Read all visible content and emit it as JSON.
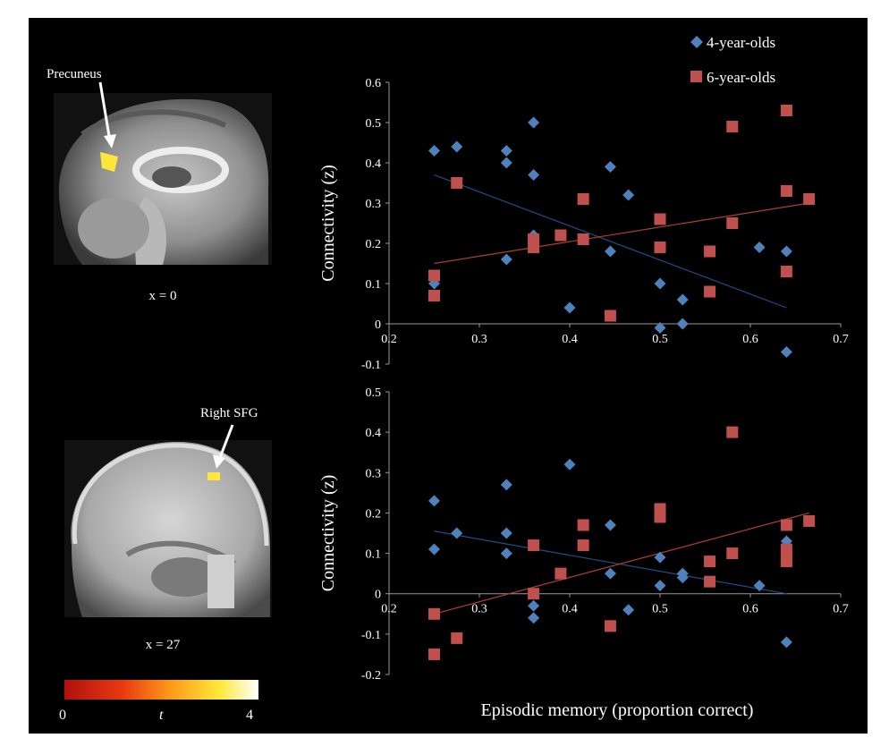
{
  "legend": [
    {
      "name": "4-year-olds",
      "color": "#4f81bd",
      "marker": "diamond"
    },
    {
      "name": "6-year-olds",
      "color": "#c0504d",
      "marker": "square"
    }
  ],
  "brain_panels": [
    {
      "region_label": "Precuneus",
      "slice_label": "x = 0"
    },
    {
      "region_label": "Right SFG",
      "slice_label": "x = 27"
    }
  ],
  "colorbar": {
    "min_label": "0",
    "mid_label": "t",
    "max_label": "4",
    "colors": [
      "#b01010",
      "#e83a10",
      "#ff9a1a",
      "#ffe83a",
      "#ffffff"
    ]
  },
  "chart_data": [
    {
      "type": "scatter",
      "ylabel": "Connectivity  (z)",
      "xlim": [
        0.2,
        0.7
      ],
      "ylim": [
        -0.1,
        0.6
      ],
      "xticks": [
        "0.2",
        "0.3",
        "0.4",
        "0.5",
        "0.6",
        "0.7"
      ],
      "yticks": [
        "-0.1",
        "0",
        "0.1",
        "0.2",
        "0.3",
        "0.4",
        "0.5",
        "0.6"
      ],
      "series": [
        {
          "name": "4-year-olds",
          "color": "#4f81bd",
          "points": [
            [
              0.25,
              0.43
            ],
            [
              0.25,
              0.1
            ],
            [
              0.275,
              0.44
            ],
            [
              0.33,
              0.43
            ],
            [
              0.33,
              0.4
            ],
            [
              0.33,
              0.16
            ],
            [
              0.36,
              0.5
            ],
            [
              0.36,
              0.37
            ],
            [
              0.36,
              0.22
            ],
            [
              0.4,
              0.04
            ],
            [
              0.445,
              0.39
            ],
            [
              0.445,
              0.18
            ],
            [
              0.465,
              0.32
            ],
            [
              0.5,
              0.1
            ],
            [
              0.5,
              -0.01
            ],
            [
              0.525,
              0.06
            ],
            [
              0.525,
              0.0
            ],
            [
              0.61,
              0.19
            ],
            [
              0.64,
              0.18
            ],
            [
              0.64,
              -0.07
            ]
          ],
          "trend": [
            [
              0.25,
              0.37
            ],
            [
              0.64,
              0.04
            ]
          ]
        },
        {
          "name": "6-year-olds",
          "color": "#c0504d",
          "points": [
            [
              0.25,
              0.12
            ],
            [
              0.25,
              0.07
            ],
            [
              0.275,
              0.35
            ],
            [
              0.36,
              0.21
            ],
            [
              0.36,
              0.19
            ],
            [
              0.39,
              0.22
            ],
            [
              0.415,
              0.31
            ],
            [
              0.415,
              0.21
            ],
            [
              0.445,
              0.02
            ],
            [
              0.5,
              0.26
            ],
            [
              0.5,
              0.19
            ],
            [
              0.555,
              0.18
            ],
            [
              0.555,
              0.08
            ],
            [
              0.58,
              0.49
            ],
            [
              0.58,
              0.25
            ],
            [
              0.64,
              0.53
            ],
            [
              0.64,
              0.33
            ],
            [
              0.64,
              0.13
            ],
            [
              0.665,
              0.31
            ]
          ],
          "trend": [
            [
              0.25,
              0.15
            ],
            [
              0.665,
              0.3
            ]
          ]
        }
      ]
    },
    {
      "type": "scatter",
      "ylabel": "Connectivity  (z)",
      "xlabel": "Episodic memory  (proportion correct)",
      "xlim": [
        0.2,
        0.7
      ],
      "ylim": [
        -0.2,
        0.5
      ],
      "xticks": [
        "0.2",
        "0.3",
        "0.4",
        "0.5",
        "0.6",
        "0.7"
      ],
      "yticks": [
        "-0.2",
        "-0.1",
        "0",
        "0.1",
        "0.2",
        "0.3",
        "0.4",
        "0.5"
      ],
      "series": [
        {
          "name": "4-year-olds",
          "color": "#4f81bd",
          "points": [
            [
              0.25,
              0.23
            ],
            [
              0.25,
              0.11
            ],
            [
              0.275,
              0.15
            ],
            [
              0.33,
              0.27
            ],
            [
              0.33,
              0.15
            ],
            [
              0.33,
              0.1
            ],
            [
              0.36,
              -0.03
            ],
            [
              0.36,
              -0.06
            ],
            [
              0.4,
              0.32
            ],
            [
              0.445,
              0.17
            ],
            [
              0.445,
              0.05
            ],
            [
              0.465,
              -0.04
            ],
            [
              0.5,
              0.09
            ],
            [
              0.5,
              0.02
            ],
            [
              0.525,
              0.05
            ],
            [
              0.525,
              0.04
            ],
            [
              0.61,
              0.02
            ],
            [
              0.64,
              0.13
            ],
            [
              0.64,
              -0.12
            ]
          ],
          "trend": [
            [
              0.25,
              0.155
            ],
            [
              0.64,
              0.0
            ]
          ]
        },
        {
          "name": "6-year-olds",
          "color": "#c0504d",
          "points": [
            [
              0.25,
              -0.05
            ],
            [
              0.25,
              -0.15
            ],
            [
              0.275,
              -0.11
            ],
            [
              0.36,
              0.12
            ],
            [
              0.36,
              0.0
            ],
            [
              0.39,
              0.05
            ],
            [
              0.415,
              0.17
            ],
            [
              0.415,
              0.12
            ],
            [
              0.445,
              -0.08
            ],
            [
              0.5,
              0.21
            ],
            [
              0.5,
              0.19
            ],
            [
              0.555,
              0.08
            ],
            [
              0.555,
              0.03
            ],
            [
              0.58,
              0.4
            ],
            [
              0.58,
              0.1
            ],
            [
              0.64,
              0.17
            ],
            [
              0.64,
              0.11
            ],
            [
              0.64,
              0.09
            ],
            [
              0.64,
              0.08
            ],
            [
              0.665,
              0.18
            ]
          ],
          "trend": [
            [
              0.25,
              -0.05
            ],
            [
              0.665,
              0.2
            ]
          ]
        }
      ]
    }
  ]
}
